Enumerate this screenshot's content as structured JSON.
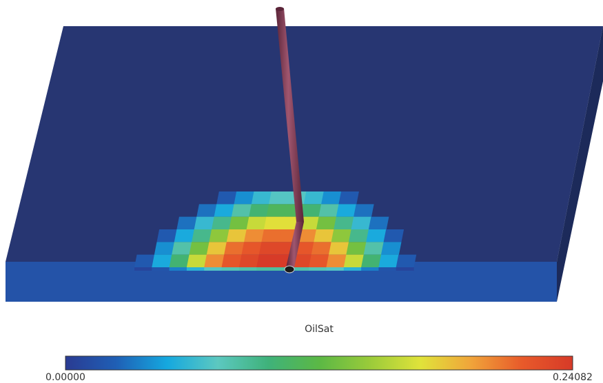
{
  "legend": {
    "title": "OilSat",
    "min_label": "0.00000",
    "max_label": "0.24082",
    "min_value": 0.0,
    "max_value": 0.24082,
    "colormap": [
      "#2a3b92",
      "#1f5fb5",
      "#15a8df",
      "#5cc8c0",
      "#3fb27a",
      "#5bb845",
      "#9acb3a",
      "#e0e33a",
      "#f0a43a",
      "#e85a2a",
      "#d63a28"
    ]
  },
  "model": {
    "top_color": "#273672",
    "front_color": "#2453a8",
    "side_color": "#1c2a5a",
    "well_color": "#7e3a52",
    "well_highlight": "#b06882"
  },
  "saturation": {
    "rows": [
      [
        0.0,
        0.0,
        0.0,
        0.0,
        0.02,
        0.04,
        0.06,
        0.07,
        0.07,
        0.06,
        0.04,
        0.02,
        0.0,
        0.0,
        0.0,
        0.0
      ],
      [
        0.0,
        0.0,
        0.0,
        0.03,
        0.05,
        0.08,
        0.1,
        0.11,
        0.11,
        0.1,
        0.08,
        0.05,
        0.03,
        0.0,
        0.0,
        0.0
      ],
      [
        0.0,
        0.0,
        0.03,
        0.06,
        0.09,
        0.13,
        0.16,
        0.17,
        0.17,
        0.16,
        0.13,
        0.09,
        0.06,
        0.03,
        0.0,
        0.0
      ],
      [
        0.0,
        0.02,
        0.05,
        0.09,
        0.14,
        0.18,
        0.2,
        0.21,
        0.21,
        0.2,
        0.18,
        0.14,
        0.09,
        0.05,
        0.02,
        0.0
      ],
      [
        0.0,
        0.04,
        0.08,
        0.13,
        0.18,
        0.21,
        0.22,
        0.23,
        0.23,
        0.22,
        0.21,
        0.18,
        0.13,
        0.08,
        0.04,
        0.0
      ],
      [
        0.02,
        0.05,
        0.1,
        0.16,
        0.2,
        0.22,
        0.23,
        0.24,
        0.24,
        0.23,
        0.22,
        0.2,
        0.16,
        0.1,
        0.05,
        0.02
      ]
    ]
  }
}
